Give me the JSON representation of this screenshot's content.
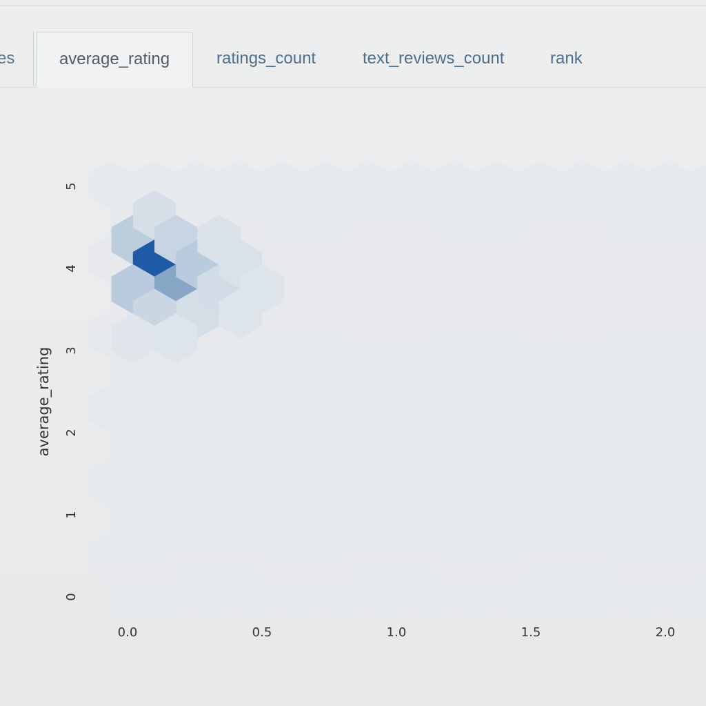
{
  "tabs": {
    "partial_label": "es",
    "items": [
      {
        "label": "average_rating",
        "active": true
      },
      {
        "label": "ratings_count",
        "active": false
      },
      {
        "label": "text_reviews_count",
        "active": false
      },
      {
        "label": "rank",
        "active": false
      }
    ]
  },
  "colors": {
    "hex_empty": "#e4e8ec",
    "hex_low": "#d3dde7",
    "hex_mid": "#9fb8d0",
    "hex_high": "#5f8cb5",
    "hex_max": "#1f5aa6"
  },
  "chart_data": {
    "type": "heatmap",
    "subtype": "hexbin",
    "title": "",
    "xlabel": "",
    "ylabel": "average_rating",
    "xlim": [
      -0.05,
      2.1
    ],
    "ylim": [
      -0.1,
      5.1
    ],
    "x_ticks": [
      "0.0",
      "0.5",
      "1.0",
      "1.5",
      "2.0"
    ],
    "y_ticks": [
      "0",
      "1",
      "2",
      "3",
      "4",
      "5"
    ],
    "grid": false,
    "colormap": "Blues",
    "bins": [
      {
        "x": 0.02,
        "y": 4.35,
        "density": 0.28
      },
      {
        "x": 0.1,
        "y": 4.65,
        "density": 0.12
      },
      {
        "x": 0.1,
        "y": 4.05,
        "density": 1.0
      },
      {
        "x": 0.18,
        "y": 4.35,
        "density": 0.22
      },
      {
        "x": 0.18,
        "y": 3.75,
        "density": 0.55
      },
      {
        "x": 0.02,
        "y": 3.75,
        "density": 0.3
      },
      {
        "x": 0.26,
        "y": 4.05,
        "density": 0.3
      },
      {
        "x": 0.1,
        "y": 3.45,
        "density": 0.2
      },
      {
        "x": 0.26,
        "y": 3.45,
        "density": 0.14
      },
      {
        "x": 0.34,
        "y": 3.75,
        "density": 0.16
      },
      {
        "x": 0.34,
        "y": 4.35,
        "density": 0.08
      },
      {
        "x": 0.42,
        "y": 4.05,
        "density": 0.1
      },
      {
        "x": 0.42,
        "y": 3.45,
        "density": 0.06
      },
      {
        "x": 0.5,
        "y": 3.75,
        "density": 0.06
      },
      {
        "x": 0.18,
        "y": 3.15,
        "density": 0.06
      },
      {
        "x": 0.02,
        "y": 3.15,
        "density": 0.04
      }
    ]
  }
}
